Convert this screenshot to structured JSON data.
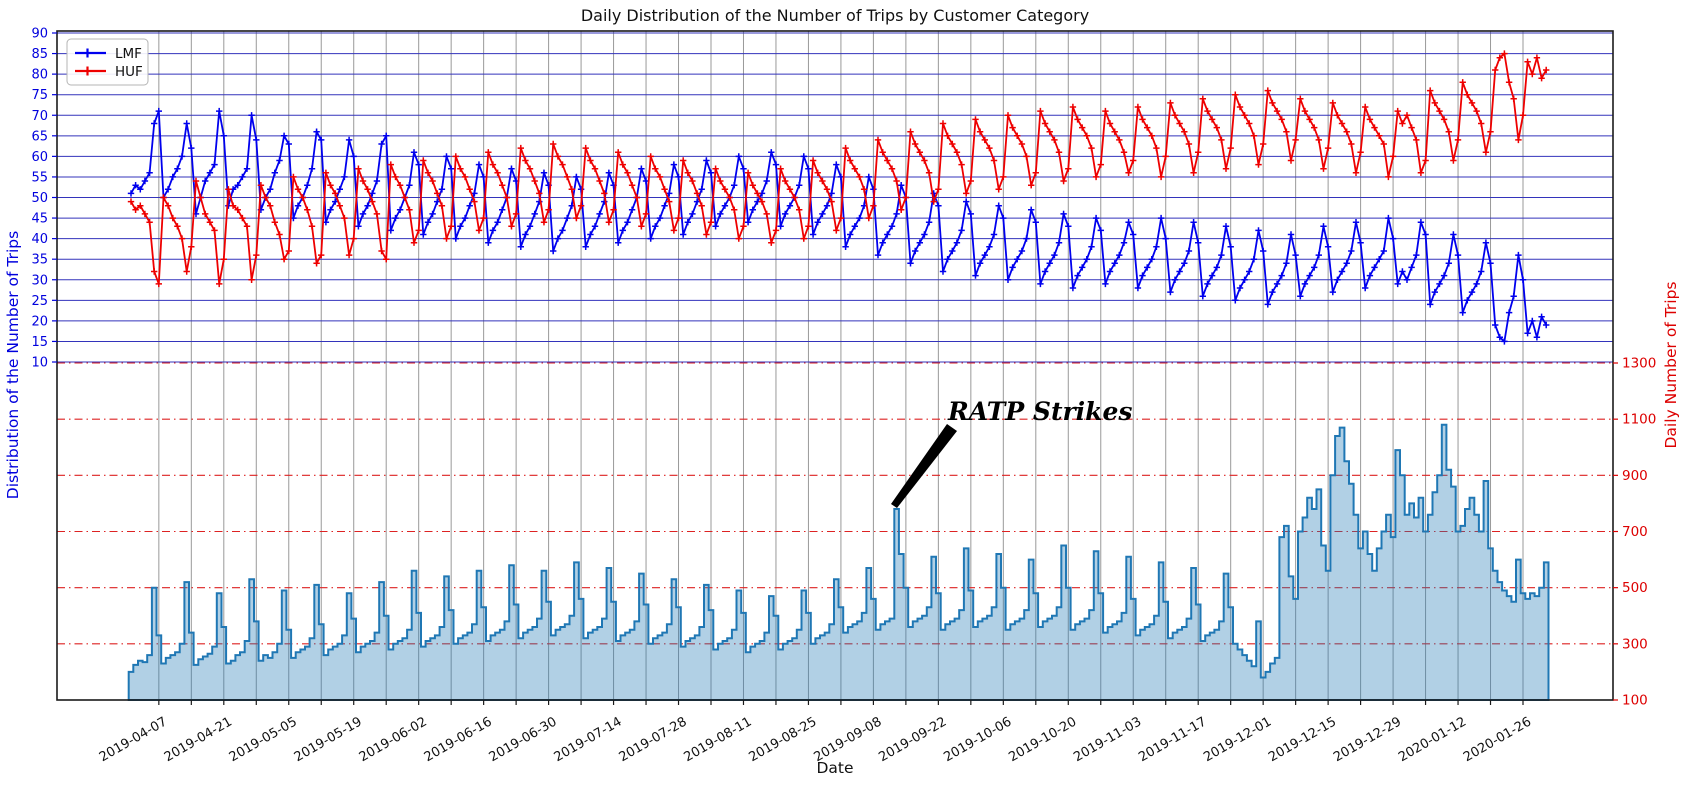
{
  "chart_data": {
    "type": "line+bar",
    "title": "Daily Distribution of the Number of Trips by Customer Category",
    "xlabel": "Date",
    "x_start_date": "2019-04-01",
    "x_frequency": "daily",
    "xtick_labels": [
      "2019-04-07",
      "2019-04-21",
      "2019-05-05",
      "2019-05-19",
      "2019-06-02",
      "2019-06-16",
      "2019-06-30",
      "2019-07-14",
      "2019-07-28",
      "2019-08-11",
      "2019-08-25",
      "2019-09-08",
      "2019-09-22",
      "2019-10-06",
      "2019-10-20",
      "2019-11-03",
      "2019-11-17",
      "2019-12-01",
      "2019-12-15",
      "2019-12-29",
      "2020-01-12",
      "2020-01-26"
    ],
    "left_axis": {
      "label": "Distribution of the Number of Trips",
      "color": "#0000dd",
      "ticks": [
        10,
        15,
        20,
        25,
        30,
        35,
        40,
        45,
        50,
        55,
        60,
        65,
        70,
        75,
        80,
        85,
        90
      ]
    },
    "right_axis": {
      "label": "Daily Number of Trips",
      "color": "#dd0000",
      "ticks": [
        100,
        300,
        500,
        700,
        900,
        1100,
        1300
      ]
    },
    "grid": {
      "h_left_color": "#3333bb",
      "h_right_color": "#dd2222",
      "vertical_color": "#999999"
    },
    "legend": {
      "position": "upper left",
      "entries": [
        {
          "label": "LMF",
          "color": "#0000ee"
        },
        {
          "label": "HUF",
          "color": "#ee0000"
        }
      ]
    },
    "annotation": {
      "text": "RATP Strikes",
      "date": "2019-09-13",
      "value": 780
    },
    "series": [
      {
        "name": "LMF",
        "type": "line",
        "axis": "left",
        "color": "#0000ee",
        "marker": "plus",
        "values": [
          51,
          53,
          52,
          54,
          56,
          68,
          71,
          50,
          52,
          55,
          57,
          60,
          68,
          62,
          46,
          50,
          54,
          56,
          58,
          71,
          65,
          48,
          52,
          53,
          55,
          57,
          70,
          64,
          47,
          50,
          52,
          56,
          59,
          65,
          63,
          45,
          48,
          50,
          53,
          57,
          66,
          64,
          44,
          47,
          49,
          52,
          55,
          64,
          60,
          43,
          46,
          48,
          51,
          54,
          63,
          65,
          42,
          45,
          47,
          50,
          53,
          61,
          58,
          41,
          44,
          46,
          49,
          52,
          60,
          57,
          40,
          43,
          45,
          48,
          51,
          58,
          55,
          39,
          42,
          44,
          47,
          50,
          57,
          54,
          38,
          41,
          43,
          46,
          49,
          56,
          53,
          37,
          40,
          42,
          45,
          48,
          55,
          52,
          38,
          41,
          43,
          46,
          49,
          56,
          53,
          39,
          42,
          44,
          47,
          50,
          57,
          54,
          40,
          43,
          45,
          48,
          51,
          58,
          55,
          41,
          44,
          46,
          49,
          52,
          59,
          56,
          43,
          46,
          48,
          50,
          53,
          60,
          57,
          44,
          47,
          49,
          51,
          54,
          61,
          58,
          43,
          46,
          48,
          50,
          53,
          60,
          57,
          41,
          44,
          46,
          48,
          51,
          58,
          55,
          38,
          41,
          43,
          45,
          48,
          55,
          52,
          36,
          39,
          41,
          43,
          46,
          53,
          50,
          34,
          37,
          39,
          41,
          44,
          51,
          48,
          32,
          35,
          37,
          39,
          42,
          49,
          46,
          31,
          34,
          36,
          38,
          41,
          48,
          45,
          30,
          33,
          35,
          37,
          40,
          47,
          44,
          29,
          32,
          34,
          36,
          39,
          46,
          43,
          28,
          31,
          33,
          35,
          38,
          45,
          42,
          29,
          32,
          34,
          36,
          39,
          44,
          41,
          28,
          31,
          33,
          35,
          38,
          45,
          40,
          27,
          30,
          32,
          34,
          37,
          44,
          39,
          26,
          29,
          31,
          33,
          36,
          43,
          38,
          25,
          28,
          30,
          32,
          35,
          42,
          37,
          24,
          27,
          29,
          31,
          34,
          41,
          36,
          26,
          29,
          31,
          33,
          36,
          43,
          38,
          27,
          30,
          32,
          34,
          37,
          44,
          39,
          28,
          31,
          33,
          35,
          37,
          45,
          40,
          29,
          32,
          30,
          33,
          36,
          44,
          41,
          24,
          27,
          29,
          31,
          34,
          41,
          36,
          22,
          25,
          27,
          29,
          32,
          39,
          34,
          19,
          16,
          15,
          22,
          26,
          36,
          30,
          17,
          20,
          16,
          21,
          19
        ]
      },
      {
        "name": "HUF",
        "type": "line",
        "axis": "left",
        "color": "#ee0000",
        "marker": "plus",
        "values": [
          49,
          47,
          48,
          46,
          44,
          32,
          29,
          50,
          48,
          45,
          43,
          40,
          32,
          38,
          54,
          50,
          46,
          44,
          42,
          29,
          35,
          52,
          48,
          47,
          45,
          43,
          30,
          36,
          53,
          50,
          48,
          44,
          41,
          35,
          37,
          55,
          52,
          50,
          47,
          43,
          34,
          36,
          56,
          53,
          51,
          48,
          45,
          36,
          40,
          57,
          54,
          52,
          49,
          46,
          37,
          35,
          58,
          55,
          53,
          50,
          47,
          39,
          42,
          59,
          56,
          54,
          51,
          48,
          40,
          43,
          60,
          57,
          55,
          52,
          49,
          42,
          45,
          61,
          58,
          56,
          53,
          50,
          43,
          46,
          62,
          59,
          57,
          54,
          51,
          44,
          47,
          63,
          60,
          58,
          55,
          52,
          45,
          48,
          62,
          59,
          57,
          54,
          51,
          44,
          47,
          61,
          58,
          56,
          53,
          50,
          43,
          46,
          60,
          57,
          55,
          52,
          49,
          42,
          45,
          59,
          56,
          54,
          51,
          48,
          41,
          44,
          57,
          54,
          52,
          50,
          47,
          40,
          43,
          56,
          53,
          51,
          49,
          46,
          39,
          42,
          57,
          54,
          52,
          50,
          47,
          40,
          43,
          59,
          56,
          54,
          52,
          49,
          42,
          45,
          62,
          59,
          57,
          55,
          52,
          45,
          48,
          64,
          61,
          59,
          57,
          54,
          47,
          50,
          66,
          63,
          61,
          59,
          56,
          49,
          52,
          68,
          65,
          63,
          61,
          58,
          51,
          54,
          69,
          66,
          64,
          62,
          59,
          52,
          55,
          70,
          67,
          65,
          63,
          60,
          53,
          56,
          71,
          68,
          66,
          64,
          61,
          54,
          57,
          72,
          69,
          67,
          65,
          62,
          55,
          58,
          71,
          68,
          66,
          64,
          61,
          56,
          59,
          72,
          69,
          67,
          65,
          62,
          55,
          60,
          73,
          70,
          68,
          66,
          63,
          56,
          61,
          74,
          71,
          69,
          67,
          64,
          57,
          62,
          75,
          72,
          70,
          68,
          65,
          58,
          63,
          76,
          73,
          71,
          69,
          66,
          59,
          64,
          74,
          71,
          69,
          67,
          64,
          57,
          62,
          73,
          70,
          68,
          66,
          63,
          56,
          61,
          72,
          69,
          67,
          65,
          63,
          55,
          60,
          71,
          68,
          70,
          67,
          64,
          56,
          59,
          76,
          73,
          71,
          69,
          66,
          59,
          64,
          78,
          75,
          73,
          71,
          68,
          61,
          66,
          81,
          84,
          85,
          78,
          74,
          64,
          70,
          83,
          80,
          84,
          79,
          81
        ]
      },
      {
        "name": "Daily Trips",
        "type": "bar",
        "axis": "right",
        "edge_color": "#1f77b4",
        "fill_color": "#1f77b4",
        "fill_opacity": 0.35,
        "values": [
          200,
          225,
          240,
          235,
          260,
          500,
          330,
          230,
          250,
          260,
          270,
          300,
          520,
          340,
          225,
          245,
          255,
          265,
          290,
          480,
          360,
          230,
          240,
          260,
          270,
          310,
          530,
          380,
          240,
          260,
          250,
          270,
          300,
          490,
          350,
          250,
          270,
          280,
          290,
          320,
          510,
          370,
          260,
          280,
          290,
          300,
          330,
          480,
          390,
          270,
          290,
          300,
          310,
          340,
          520,
          400,
          280,
          300,
          310,
          320,
          350,
          560,
          410,
          290,
          310,
          320,
          330,
          360,
          540,
          420,
          300,
          320,
          330,
          340,
          370,
          560,
          430,
          310,
          330,
          340,
          350,
          380,
          580,
          440,
          320,
          340,
          350,
          360,
          390,
          560,
          450,
          330,
          350,
          360,
          370,
          400,
          590,
          460,
          320,
          340,
          350,
          360,
          390,
          570,
          450,
          310,
          330,
          340,
          350,
          380,
          550,
          440,
          300,
          320,
          330,
          340,
          370,
          530,
          430,
          290,
          310,
          320,
          330,
          360,
          510,
          420,
          280,
          300,
          310,
          320,
          350,
          490,
          410,
          270,
          290,
          300,
          310,
          340,
          470,
          400,
          280,
          300,
          310,
          320,
          350,
          490,
          410,
          300,
          320,
          330,
          340,
          370,
          530,
          430,
          340,
          360,
          370,
          380,
          410,
          570,
          460,
          350,
          370,
          380,
          390,
          780,
          620,
          500,
          360,
          380,
          390,
          400,
          430,
          610,
          480,
          350,
          370,
          380,
          390,
          420,
          640,
          490,
          360,
          380,
          390,
          400,
          430,
          620,
          500,
          350,
          370,
          380,
          390,
          420,
          600,
          480,
          360,
          380,
          390,
          400,
          430,
          650,
          500,
          350,
          370,
          380,
          390,
          420,
          630,
          480,
          340,
          360,
          370,
          380,
          410,
          610,
          460,
          330,
          350,
          360,
          370,
          400,
          590,
          450,
          320,
          340,
          350,
          360,
          390,
          570,
          440,
          310,
          330,
          340,
          350,
          380,
          550,
          430,
          300,
          280,
          260,
          240,
          220,
          380,
          180,
          200,
          230,
          250,
          680,
          720,
          540,
          460,
          700,
          750,
          820,
          780,
          850,
          650,
          560,
          900,
          1040,
          1070,
          950,
          870,
          760,
          640,
          700,
          620,
          560,
          640,
          700,
          760,
          680,
          990,
          900,
          760,
          800,
          750,
          820,
          700,
          760,
          840,
          900,
          1080,
          920,
          860,
          700,
          720,
          780,
          820,
          760,
          700,
          880,
          640,
          560,
          520,
          490,
          470,
          450,
          600,
          480,
          460,
          480,
          470,
          500,
          590
        ]
      }
    ]
  }
}
